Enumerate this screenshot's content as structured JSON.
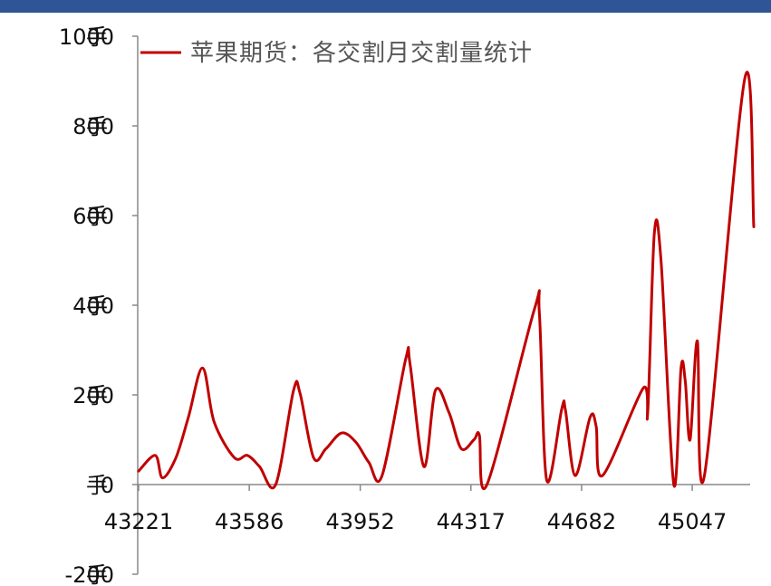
{
  "chart_data": {
    "type": "line",
    "title": "",
    "xlabel": "",
    "ylabel": "",
    "ylim": [
      -200,
      1000
    ],
    "y_ticks": [
      -200,
      0,
      200,
      400,
      600,
      800,
      1000
    ],
    "y_tick_suffix": "手",
    "x_ticks": [
      43221,
      43586,
      43952,
      44317,
      44682,
      45047
    ],
    "xlim": [
      43221,
      45250
    ],
    "grid": false,
    "legend_position": "top-left",
    "series": [
      {
        "name": "苹果期货：各交割月交割量统计",
        "color": "#c00000",
        "points": [
          [
            43221,
            30
          ],
          [
            43276,
            65
          ],
          [
            43300,
            15
          ],
          [
            43344,
            60
          ],
          [
            43385,
            150
          ],
          [
            43432,
            260
          ],
          [
            43470,
            140
          ],
          [
            43537,
            60
          ],
          [
            43580,
            65
          ],
          [
            43620,
            40
          ],
          [
            43673,
            0
          ],
          [
            43732,
            210
          ],
          [
            43753,
            205
          ],
          [
            43798,
            60
          ],
          [
            43839,
            80
          ],
          [
            43890,
            115
          ],
          [
            43937,
            95
          ],
          [
            43980,
            50
          ],
          [
            44024,
            20
          ],
          [
            44102,
            280
          ],
          [
            44116,
            270
          ],
          [
            44162,
            40
          ],
          [
            44200,
            210
          ],
          [
            44245,
            160
          ],
          [
            44285,
            80
          ],
          [
            44327,
            100
          ],
          [
            44345,
            110
          ],
          [
            44370,
            0
          ],
          [
            44526,
            390
          ],
          [
            44543,
            380
          ],
          [
            44567,
            10
          ],
          [
            44617,
            170
          ],
          [
            44629,
            165
          ],
          [
            44661,
            20
          ],
          [
            44710,
            150
          ],
          [
            44730,
            130
          ],
          [
            44751,
            20
          ],
          [
            44885,
            215
          ],
          [
            44900,
            160
          ],
          [
            44922,
            560
          ],
          [
            44944,
            500
          ],
          [
            44986,
            0
          ],
          [
            45010,
            260
          ],
          [
            45024,
            230
          ],
          [
            45040,
            100
          ],
          [
            45064,
            320
          ],
          [
            45087,
            20
          ],
          [
            45220,
            905
          ],
          [
            45250,
            575
          ]
        ]
      }
    ]
  }
}
